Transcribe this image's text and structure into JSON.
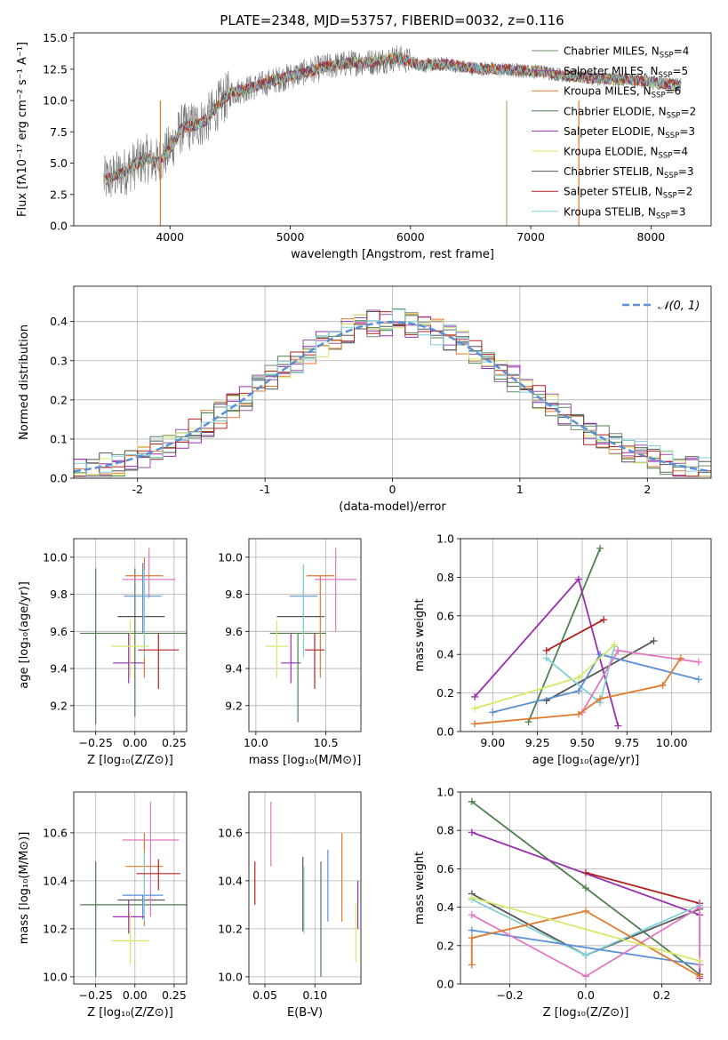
{
  "figure": {
    "title": "PLATE=2348, MJD=53757, FIBERID=0032, z=0.116"
  },
  "chart_data": [
    {
      "id": "spectrum",
      "type": "line",
      "title": "PLATE=2348, MJD=53757, FIBERID=0032, z=0.116",
      "xlabel": "wavelength [Angstrom, rest frame]",
      "ylabel": "Flux [fλ10⁻¹⁷ erg cm⁻² s⁻¹ A⁻¹]",
      "xlim": [
        3200,
        8500
      ],
      "ylim": [
        0,
        15.4
      ],
      "xticks": [
        4000,
        5000,
        6000,
        7000,
        8000
      ],
      "yticks": [
        0.0,
        2.5,
        5.0,
        7.5,
        10.0,
        12.5,
        15.0
      ],
      "grid": false,
      "legend_position": "right",
      "observed_envelope": {
        "x": [
          3450,
          3600,
          3800,
          3900,
          4000,
          4100,
          4200,
          4300,
          4400,
          4500,
          4700,
          4900,
          5100,
          5300,
          5500,
          5700,
          5900,
          6100,
          6300,
          6500,
          6700,
          6900,
          7100,
          7300,
          7500,
          7700,
          7900,
          8050,
          8250
        ],
        "y": [
          3.6,
          4.2,
          5.4,
          5.0,
          6.2,
          7.8,
          8.0,
          8.4,
          9.6,
          10.6,
          11.1,
          11.7,
          12.2,
          12.7,
          13.0,
          13.1,
          13.4,
          12.8,
          12.9,
          12.6,
          12.5,
          12.4,
          12.3,
          12.0,
          11.8,
          11.7,
          11.6,
          11.4,
          11.2
        ]
      },
      "series": [
        {
          "name": "Chabrier MILES, N$_{SSP}$=4",
          "color": "#6c8f6c",
          "label_text": "Chabrier MILES, N",
          "label_sub": "SSP",
          "label_tail": "=4"
        },
        {
          "name": "Salpeter MILES, N$_{SSP}$=5",
          "color": "#9b4ea8",
          "label_text": "Salpeter MILES, N",
          "label_sub": "SSP",
          "label_tail": "=5"
        },
        {
          "name": "Kroupa MILES, N$_{SSP}$=6",
          "color": "#e07a2e",
          "label_text": "Kroupa MILES, N",
          "label_sub": "SSP",
          "label_tail": "=6"
        },
        {
          "name": "Chabrier ELODIE, N$_{SSP}$=2",
          "color": "#4f7f4f",
          "label_text": "Chabrier ELODIE, N",
          "label_sub": "SSP",
          "label_tail": "=2"
        },
        {
          "name": "Salpeter ELODIE, N$_{SSP}$=3",
          "color": "#9a2fb0",
          "label_text": "Salpeter ELODIE, N",
          "label_sub": "SSP",
          "label_tail": "=3"
        },
        {
          "name": "Kroupa ELODIE, N$_{SSP}$=4",
          "color": "#d6e86a",
          "label_text": "Kroupa ELODIE, N",
          "label_sub": "SSP",
          "label_tail": "=4"
        },
        {
          "name": "Chabrier STELIB, N$_{SSP}$=3",
          "color": "#555555",
          "label_text": "Chabrier STELIB, N",
          "label_sub": "SSP",
          "label_tail": "=3"
        },
        {
          "name": "Salpeter STELIB, N$_{SSP}$=2",
          "color": "#b22222",
          "label_text": "Salpeter STELIB, N",
          "label_sub": "SSP",
          "label_tail": "=2"
        },
        {
          "name": "Kroupa STELIB, N$_{SSP}$=3",
          "color": "#7fd0d6",
          "label_text": "Kroupa STELIB, N",
          "label_sub": "SSP",
          "label_tail": "=3"
        }
      ]
    },
    {
      "id": "residuals",
      "type": "histogram",
      "xlabel": "(data-model)/error",
      "ylabel": "Normed distribution",
      "xlim": [
        -2.5,
        2.5
      ],
      "ylim": [
        0,
        0.49
      ],
      "xticks": [
        -2,
        -1,
        0,
        1,
        2
      ],
      "yticks": [
        0.0,
        0.1,
        0.2,
        0.3,
        0.4
      ],
      "grid": true,
      "legend_position": "top-right",
      "legend": [
        {
          "name": "𝒩(0, 1)",
          "color": "#5b8fd6",
          "style": "dashed"
        }
      ],
      "bin_width": 0.1,
      "bin_start": -2.5,
      "series_colors": [
        "#6c8f6c",
        "#9b4ea8",
        "#e07a2e",
        "#4f7f4f",
        "#9a2fb0",
        "#d6e86a",
        "#555555",
        "#b22222",
        "#7fd0d6"
      ]
    },
    {
      "id": "age_vs_Z",
      "type": "errorbar",
      "xlabel": "Z [log₁₀(Z/Z⊙)]",
      "ylabel": "age  [log₁₀(age/yr)]",
      "xlim": [
        -0.39,
        0.33
      ],
      "ylim": [
        9.06,
        10.1
      ],
      "xticks": [
        -0.25,
        0.0,
        0.25
      ],
      "xticklabels": [
        "−0.25",
        "0.00",
        "0.25"
      ],
      "yticks": [
        9.2,
        9.4,
        9.6,
        9.8,
        10.0
      ],
      "grid": true,
      "points": [
        {
          "x": 0.0,
          "y": 9.59,
          "xerr": 0.35,
          "yerr_lo": 0.45,
          "yerr_hi": 0.35,
          "color": "#4f7f4f"
        },
        {
          "x": -0.25,
          "y": 9.5,
          "xerr": 0.0,
          "yerr_lo": 0.4,
          "yerr_hi": 0.44,
          "color": "#4f7f4f"
        },
        {
          "x": 0.04,
          "y": 9.68,
          "xerr": 0.15,
          "yerr_lo": 0.0,
          "yerr_hi": 0.0,
          "color": "#555555"
        },
        {
          "x": 0.09,
          "y": 9.88,
          "xerr": 0.17,
          "yerr_lo": 0.1,
          "yerr_hi": 0.17,
          "color": "#e377c2"
        },
        {
          "x": 0.06,
          "y": 9.9,
          "xerr": 0.12,
          "yerr_lo": 0.55,
          "yerr_hi": 0.1,
          "color": "#e07a2e"
        },
        {
          "x": 0.05,
          "y": 9.79,
          "xerr": 0.12,
          "yerr_lo": 0.2,
          "yerr_hi": 0.18,
          "color": "#5b8fd6"
        },
        {
          "x": 0.06,
          "y": 9.66,
          "xerr": 0.0,
          "yerr_lo": 0.2,
          "yerr_hi": 0.27,
          "color": "#7fd0d6"
        },
        {
          "x": -0.04,
          "y": 9.43,
          "xerr": 0.1,
          "yerr_lo": 0.11,
          "yerr_hi": 0.16,
          "color": "#9a2fb0"
        },
        {
          "x": -0.03,
          "y": 9.52,
          "xerr": 0.12,
          "yerr_lo": 0.17,
          "yerr_hi": 0.14,
          "color": "#d6e86a"
        },
        {
          "x": 0.15,
          "y": 9.5,
          "xerr": 0.13,
          "yerr_lo": 0.21,
          "yerr_hi": 0.09,
          "color": "#b22222"
        }
      ]
    },
    {
      "id": "age_vs_mass",
      "type": "errorbar",
      "xlabel": "mass [log₁₀(M/M⊙)]",
      "ylabel": "",
      "xlim": [
        9.95,
        10.75
      ],
      "ylim": [
        9.06,
        10.1
      ],
      "xticks": [
        10.0,
        10.5
      ],
      "xticklabels": [
        "10.0",
        "10.5"
      ],
      "yticks": [
        9.2,
        9.4,
        9.6,
        9.8,
        10.0
      ],
      "grid": true,
      "points": [
        {
          "x": 10.3,
          "y": 9.59,
          "xerr": 0.2,
          "yerr_lo": 0.48,
          "yerr_hi": 0.0,
          "color": "#4f7f4f"
        },
        {
          "x": 10.32,
          "y": 9.68,
          "xerr": 0.17,
          "yerr_lo": 0.0,
          "yerr_hi": 0.0,
          "color": "#555555"
        },
        {
          "x": 10.57,
          "y": 9.88,
          "xerr": 0.15,
          "yerr_lo": 0.28,
          "yerr_hi": 0.17,
          "color": "#e377c2"
        },
        {
          "x": 10.46,
          "y": 9.9,
          "xerr": 0.1,
          "yerr_lo": 0.55,
          "yerr_hi": 0.0,
          "color": "#e07a2e"
        },
        {
          "x": 10.34,
          "y": 9.79,
          "xerr": 0.1,
          "yerr_lo": 0.2,
          "yerr_hi": 0.17,
          "color": "#5b8fd6"
        },
        {
          "x": 10.34,
          "y": 9.66,
          "xerr": 0.0,
          "yerr_lo": 0.2,
          "yerr_hi": 0.3,
          "color": "#7fd0d6"
        },
        {
          "x": 10.25,
          "y": 9.43,
          "xerr": 0.07,
          "yerr_lo": 0.11,
          "yerr_hi": 0.16,
          "color": "#9a2fb0"
        },
        {
          "x": 10.15,
          "y": 9.52,
          "xerr": 0.08,
          "yerr_lo": 0.17,
          "yerr_hi": 0.14,
          "color": "#d6e86a"
        },
        {
          "x": 10.42,
          "y": 9.5,
          "xerr": 0.07,
          "yerr_lo": 0.21,
          "yerr_hi": 0.09,
          "color": "#b22222"
        }
      ]
    },
    {
      "id": "weight_vs_age",
      "type": "line",
      "xlabel": "age  [log₁₀(age/yr)]",
      "ylabel": "mass weight",
      "xlim": [
        8.82,
        10.22
      ],
      "ylim": [
        0,
        1.0
      ],
      "xticks": [
        9.0,
        9.25,
        9.5,
        9.75,
        10.0
      ],
      "xticklabels": [
        "9.00",
        "9.25",
        "9.50",
        "9.75",
        "10.00"
      ],
      "yticks": [
        0.0,
        0.2,
        0.4,
        0.6,
        0.8,
        1.0
      ],
      "grid": true,
      "series": [
        {
          "color": "#4f7f4f",
          "x": [
            9.2,
            9.6
          ],
          "y": [
            0.05,
            0.95
          ]
        },
        {
          "color": "#9a2fb0",
          "x": [
            8.9,
            9.48,
            9.7
          ],
          "y": [
            0.18,
            0.79,
            0.03
          ]
        },
        {
          "color": "#b22222",
          "x": [
            9.3,
            9.62
          ],
          "y": [
            0.42,
            0.58
          ]
        },
        {
          "color": "#555555",
          "x": [
            9.3,
            9.9
          ],
          "y": [
            0.16,
            0.47
          ]
        },
        {
          "color": "#7fd0d6",
          "x": [
            9.3,
            9.6,
            9.68
          ],
          "y": [
            0.38,
            0.15,
            0.44
          ]
        },
        {
          "color": "#5b8fd6",
          "x": [
            9.0,
            9.48,
            9.6,
            10.15
          ],
          "y": [
            0.1,
            0.21,
            0.4,
            0.27
          ]
        },
        {
          "color": "#e377c2",
          "x": [
            9.5,
            9.7,
            10.15
          ],
          "y": [
            0.1,
            0.42,
            0.36
          ]
        },
        {
          "color": "#e07a2e",
          "x": [
            8.9,
            9.48,
            9.6,
            9.95,
            10.05
          ],
          "y": [
            0.04,
            0.09,
            0.17,
            0.24,
            0.38
          ]
        },
        {
          "color": "#d6e86a",
          "x": [
            8.9,
            9.48,
            9.68
          ],
          "y": [
            0.12,
            0.28,
            0.45
          ]
        }
      ]
    },
    {
      "id": "mass_vs_Z",
      "type": "errorbar",
      "xlabel": "Z [log₁₀(Z/Z⊙)]",
      "ylabel": "mass [log₁₀(M/M⊙)]",
      "xlim": [
        -0.39,
        0.33
      ],
      "ylim": [
        9.97,
        10.77
      ],
      "xticks": [
        -0.25,
        0.0,
        0.25
      ],
      "xticklabels": [
        "−0.25",
        "0.00",
        "0.25"
      ],
      "yticks": [
        10.0,
        10.2,
        10.4,
        10.6
      ],
      "grid": true,
      "points": [
        {
          "x": 0.0,
          "y": 10.3,
          "xerr": 0.35,
          "yerr_lo": 0.0,
          "yerr_hi": 0.0,
          "color": "#4f7f4f"
        },
        {
          "x": -0.25,
          "y": 10.25,
          "xerr": 0.0,
          "yerr_lo": 0.25,
          "yerr_hi": 0.23,
          "color": "#4f7f4f"
        },
        {
          "x": 0.04,
          "y": 10.32,
          "xerr": 0.15,
          "yerr_lo": 0.0,
          "yerr_hi": 0.0,
          "color": "#555555"
        },
        {
          "x": 0.1,
          "y": 10.57,
          "xerr": 0.18,
          "yerr_lo": 0.32,
          "yerr_hi": 0.16,
          "color": "#e377c2"
        },
        {
          "x": 0.06,
          "y": 10.46,
          "xerr": 0.12,
          "yerr_lo": 0.25,
          "yerr_hi": 0.14,
          "color": "#e07a2e"
        },
        {
          "x": 0.05,
          "y": 10.34,
          "xerr": 0.13,
          "yerr_lo": 0.1,
          "yerr_hi": 0.0,
          "color": "#5b8fd6"
        },
        {
          "x": 0.06,
          "y": 10.34,
          "xerr": 0.0,
          "yerr_lo": 0.11,
          "yerr_hi": 0.18,
          "color": "#7fd0d6"
        },
        {
          "x": -0.04,
          "y": 10.25,
          "xerr": 0.1,
          "yerr_lo": 0.07,
          "yerr_hi": 0.07,
          "color": "#9a2fb0"
        },
        {
          "x": -0.03,
          "y": 10.15,
          "xerr": 0.12,
          "yerr_lo": 0.1,
          "yerr_hi": 0.12,
          "color": "#d6e86a"
        },
        {
          "x": 0.15,
          "y": 10.43,
          "xerr": 0.14,
          "yerr_lo": 0.07,
          "yerr_hi": 0.06,
          "color": "#b22222"
        }
      ]
    },
    {
      "id": "mass_vs_ebv",
      "type": "errorbar",
      "xlabel": "E(B-V)",
      "ylabel": "",
      "xlim": [
        0.034,
        0.146
      ],
      "ylim": [
        9.97,
        10.77
      ],
      "xticks": [
        0.05,
        0.1
      ],
      "xticklabels": [
        "0.05",
        "0.10"
      ],
      "yticks": [
        10.0,
        10.2,
        10.4,
        10.6
      ],
      "grid": true,
      "points": [
        {
          "x": 0.04,
          "y": 10.39,
          "xerr": 0.0,
          "yerr_lo": 0.09,
          "yerr_hi": 0.09,
          "color": "#b22222"
        },
        {
          "x": 0.056,
          "y": 10.59,
          "xerr": 0.0,
          "yerr_lo": 0.13,
          "yerr_hi": 0.14,
          "color": "#e377c2"
        },
        {
          "x": 0.088,
          "y": 10.35,
          "xerr": 0.0,
          "yerr_lo": 0.16,
          "yerr_hi": 0.15,
          "color": "#555555"
        },
        {
          "x": 0.089,
          "y": 10.33,
          "xerr": 0.0,
          "yerr_lo": 0.15,
          "yerr_hi": 0.13,
          "color": "#7fd0d6"
        },
        {
          "x": 0.106,
          "y": 10.25,
          "xerr": 0.0,
          "yerr_lo": 0.25,
          "yerr_hi": 0.23,
          "color": "#4f7f4f"
        },
        {
          "x": 0.113,
          "y": 10.38,
          "xerr": 0.0,
          "yerr_lo": 0.15,
          "yerr_hi": 0.15,
          "color": "#5b8fd6"
        },
        {
          "x": 0.127,
          "y": 10.43,
          "xerr": 0.0,
          "yerr_lo": 0.2,
          "yerr_hi": 0.17,
          "color": "#e07a2e"
        },
        {
          "x": 0.141,
          "y": 10.19,
          "xerr": 0.0,
          "yerr_lo": 0.13,
          "yerr_hi": 0.12,
          "color": "#d6e86a"
        },
        {
          "x": 0.143,
          "y": 10.3,
          "xerr": 0.0,
          "yerr_lo": 0.1,
          "yerr_hi": 0.1,
          "color": "#9a2fb0"
        }
      ]
    },
    {
      "id": "weight_vs_Z",
      "type": "line",
      "xlabel": "Z [log₁₀(Z/Z⊙)]",
      "ylabel": "mass weight",
      "xlim": [
        -0.33,
        0.33
      ],
      "ylim": [
        0,
        1.0
      ],
      "xticks": [
        -0.2,
        0.0,
        0.2
      ],
      "xticklabels": [
        "−0.2",
        "0.0",
        "0.2"
      ],
      "yticks": [
        0.0,
        0.2,
        0.4,
        0.6,
        0.8,
        1.0
      ],
      "grid": true,
      "series": [
        {
          "color": "#4f7f4f",
          "x": [
            -0.3,
            0.0,
            0.3
          ],
          "y": [
            0.95,
            0.5,
            0.05
          ]
        },
        {
          "color": "#9a2fb0",
          "x": [
            -0.3,
            0.3,
            0.3
          ],
          "y": [
            0.79,
            0.36,
            0.03
          ]
        },
        {
          "color": "#b22222",
          "x": [
            0.0,
            0.3
          ],
          "y": [
            0.58,
            0.42
          ]
        },
        {
          "color": "#555555",
          "x": [
            -0.3,
            0.0,
            0.3
          ],
          "y": [
            0.47,
            0.15,
            0.39
          ]
        },
        {
          "color": "#7fd0d6",
          "x": [
            -0.3,
            0.0,
            0.3
          ],
          "y": [
            0.44,
            0.15,
            0.41
          ]
        },
        {
          "color": "#5b8fd6",
          "x": [
            -0.3,
            0.3
          ],
          "y": [
            0.28,
            0.1
          ]
        },
        {
          "color": "#e377c2",
          "x": [
            -0.3,
            0.0,
            0.3,
            0.3
          ],
          "y": [
            0.36,
            0.04,
            0.4,
            0.1
          ]
        },
        {
          "color": "#e07a2e",
          "x": [
            -0.3,
            -0.3,
            0.0,
            0.3
          ],
          "y": [
            0.1,
            0.24,
            0.38,
            0.04
          ]
        },
        {
          "color": "#d6e86a",
          "x": [
            -0.3,
            0.3
          ],
          "y": [
            0.45,
            0.12
          ]
        }
      ]
    }
  ]
}
